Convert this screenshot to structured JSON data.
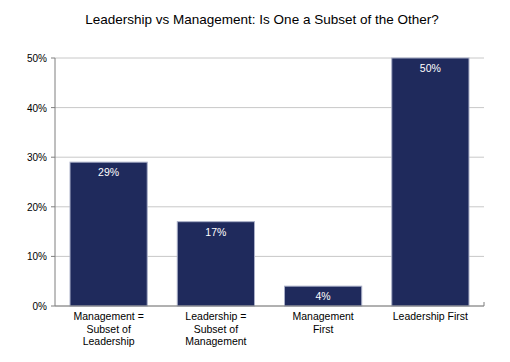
{
  "chart_data": {
    "type": "bar",
    "title": "Leadership vs Management: Is One a Subset of the Other?",
    "categories": [
      "Management = Subset of Leadership",
      "Leadership = Subset of Management",
      "Management First",
      "Leadership First"
    ],
    "values": [
      29,
      17,
      4,
      50
    ],
    "value_labels": [
      "29%",
      "17%",
      "4%",
      "50%"
    ],
    "color": "#1f2a5c",
    "ylim": [
      0,
      50
    ],
    "yticks": [
      {
        "value": 0,
        "label": "0%"
      },
      {
        "value": 10,
        "label": "10%"
      },
      {
        "value": 20,
        "label": "20%"
      },
      {
        "value": 30,
        "label": "30%"
      },
      {
        "value": 40,
        "label": "40%"
      },
      {
        "value": 50,
        "label": "50%"
      }
    ],
    "grid": true,
    "data_labels": true
  }
}
